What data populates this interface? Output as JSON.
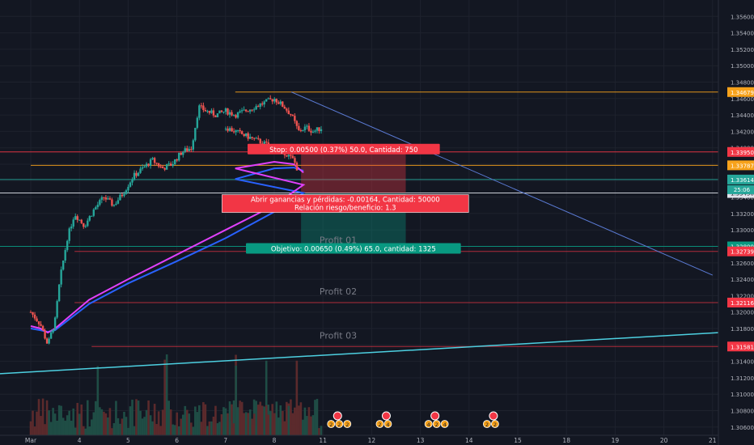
{
  "chart_data": {
    "type": "candlestick",
    "title": "",
    "xlabel": "",
    "ylabel": "",
    "ylim": [
      1.305,
      1.358
    ],
    "y_ticks": [
      1.306,
      1.308,
      1.31,
      1.312,
      1.314,
      1.316,
      1.318,
      1.32,
      1.322,
      1.324,
      1.326,
      1.328,
      1.33,
      1.332,
      1.334,
      1.336,
      1.338,
      1.34,
      1.342,
      1.344,
      1.346,
      1.348,
      1.35,
      1.352,
      1.354,
      1.356
    ],
    "y_tick_labels": [
      "1.30600",
      "1.30800",
      "1.31000",
      "1.31200",
      "1.31400",
      "1.31600",
      "1.31800",
      "1.32000",
      "1.32200",
      "1.32400",
      "1.32600",
      "1.32800",
      "1.33000",
      "1.33200",
      "1.33400",
      "1.33600",
      "1.33800",
      "1.34000",
      "1.34200",
      "1.34400",
      "1.34600",
      "1.34800",
      "1.35000",
      "1.35200",
      "1.35400",
      "1.35600"
    ],
    "x_ticks": [
      3,
      4,
      5,
      6,
      7,
      8,
      11,
      12,
      13,
      14,
      15,
      18,
      19,
      20,
      21
    ],
    "x_tick_labels": [
      "Mar",
      "4",
      "5",
      "6",
      "7",
      "8",
      "11",
      "12",
      "13",
      "14",
      "15",
      "18",
      "19",
      "20",
      "21"
    ],
    "price_path": [
      [
        3.0,
        1.32
      ],
      [
        3.2,
        1.3185
      ],
      [
        3.35,
        1.316
      ],
      [
        3.5,
        1.319
      ],
      [
        3.6,
        1.324
      ],
      [
        3.75,
        1.329
      ],
      [
        3.9,
        1.332
      ],
      [
        4.1,
        1.3305
      ],
      [
        4.3,
        1.3325
      ],
      [
        4.5,
        1.334
      ],
      [
        4.7,
        1.333
      ],
      [
        4.9,
        1.3345
      ],
      [
        5.1,
        1.3365
      ],
      [
        5.3,
        1.3375
      ],
      [
        5.5,
        1.3385
      ],
      [
        5.7,
        1.3375
      ],
      [
        5.9,
        1.338
      ],
      [
        6.1,
        1.3395
      ],
      [
        6.3,
        1.34
      ],
      [
        6.45,
        1.345
      ],
      [
        6.6,
        1.3445
      ],
      [
        6.8,
        1.344
      ],
      [
        7.0,
        1.3445
      ],
      [
        7.2,
        1.344
      ],
      [
        7.4,
        1.3445
      ],
      [
        7.6,
        1.345
      ],
      [
        7.8,
        1.3455
      ],
      [
        8.0,
        1.346
      ],
      [
        8.2,
        1.345
      ],
      [
        8.35,
        1.344
      ],
      [
        8.5,
        1.342
      ],
      [
        8.65,
        1.3425
      ],
      [
        8.8,
        1.342
      ],
      [
        9.0,
        1.3425
      ],
      [
        9.2,
        1.342
      ],
      [
        9.4,
        1.3415
      ],
      [
        9.6,
        1.341
      ],
      [
        9.8,
        1.3405
      ],
      [
        10.0,
        1.34
      ],
      [
        10.2,
        1.3395
      ],
      [
        10.4,
        1.3385
      ],
      [
        10.5,
        1.337
      ]
    ],
    "ema_short": [
      [
        3.0,
        1.3183
      ],
      [
        3.2,
        1.318
      ],
      [
        3.35,
        1.3175
      ],
      [
        3.5,
        1.318
      ],
      [
        4.2,
        1.3215
      ],
      [
        5.0,
        1.324
      ],
      [
        6.0,
        1.327
      ],
      [
        7.0,
        1.33
      ],
      [
        8.0,
        1.333
      ],
      [
        8.6,
        1.3355
      ],
      [
        9.2,
        1.3375
      ],
      [
        10.0,
        1.3383
      ],
      [
        10.4,
        1.338
      ],
      [
        10.6,
        1.337
      ]
    ],
    "ema_long": [
      [
        3.0,
        1.318
      ],
      [
        3.2,
        1.3178
      ],
      [
        3.35,
        1.3176
      ],
      [
        3.5,
        1.3178
      ],
      [
        4.2,
        1.321
      ],
      [
        5.0,
        1.3235
      ],
      [
        6.0,
        1.3262
      ],
      [
        7.0,
        1.329
      ],
      [
        8.0,
        1.3322
      ],
      [
        8.6,
        1.3345
      ],
      [
        9.2,
        1.3362
      ],
      [
        10.0,
        1.3375
      ],
      [
        10.4,
        1.3376
      ],
      [
        10.6,
        1.3372
      ]
    ],
    "horizontal_levels": [
      {
        "value": 1.34679,
        "label": "1.34679",
        "color": "#f7a21b",
        "x_from": 7.2
      },
      {
        "value": 1.3395,
        "label": "1.33950",
        "color": "#f23645"
      },
      {
        "value": 1.33787,
        "label": "1.33787",
        "color": "#f7a21b",
        "x_from": 3.0
      },
      {
        "value": 1.33614,
        "label": "1.33614",
        "color": "#26a69a"
      },
      {
        "value": 1.3345,
        "label": "1.33450",
        "color": "#e0e3eb"
      },
      {
        "value": 1.328,
        "label": "1.32800",
        "color": "#089981"
      },
      {
        "value": 1.32739,
        "label": "1.32739",
        "color": "#f23645",
        "x_from": 3.9,
        "name": "Profit 01"
      },
      {
        "value": 1.32116,
        "label": "1.32116",
        "color": "#f23645",
        "x_from": 3.9,
        "name": "Profit 02"
      },
      {
        "value": 1.31581,
        "label": "1.31581",
        "color": "#f23645",
        "x_from": 4.25,
        "name": "Profit 03"
      }
    ],
    "countdown_label": "25:06",
    "trendline_down": [
      [
        8.35,
        1.3468
      ],
      [
        21.0,
        1.3245
      ]
    ],
    "trendline_up": [
      [
        3.0,
        1.3125
      ],
      [
        21.0,
        1.3175
      ]
    ],
    "position": {
      "entry": 1.3345,
      "stop": 1.3395,
      "target": 1.328,
      "x_from": 10.55,
      "x_to": 12.7,
      "stop_label": "Stop: 0.00500 (0.37%) 50.0, Cantidad: 750",
      "pnl_label_1": "Abrir ganancias y pérdidas: -0.00164, Cantidad: 50000",
      "pnl_label_2": "Relación riesgo/beneficio: 1.3",
      "target_label": "Objetivo: 0.00650 (0.49%) 65.0, cantidad: 1325"
    },
    "event_markers": [
      {
        "x": 11.3,
        "labels": [
          "2",
          "2",
          "2"
        ]
      },
      {
        "x": 12.3,
        "labels": [
          "2",
          "4"
        ]
      },
      {
        "x": 13.3,
        "labels": [
          "4",
          "2",
          "4"
        ]
      },
      {
        "x": 14.5,
        "labels": [
          "2",
          "2"
        ]
      }
    ]
  }
}
